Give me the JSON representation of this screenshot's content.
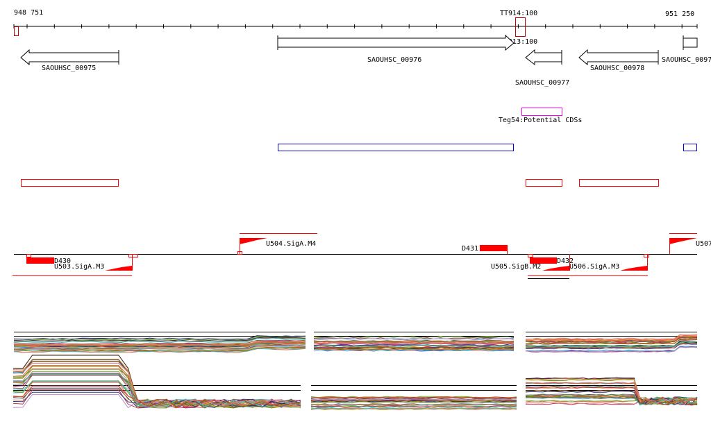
{
  "ruler": {
    "start_label": "948 751",
    "end_label": "951 250"
  },
  "terminators": [
    {
      "label": "TT914:100"
    },
    {
      "label": "TT913:100"
    }
  ],
  "genes": [
    {
      "label": "SAOUHSC_00975",
      "strand": "-"
    },
    {
      "label": "SAOUHSC_00976",
      "strand": "+"
    },
    {
      "label": "SAOUHSC_00977",
      "strand": "-"
    },
    {
      "label": "SAOUHSC_00978",
      "strand": "-"
    },
    {
      "label": "SAOUHSC_0097",
      "strand": "+"
    }
  ],
  "teg": {
    "label": "Teg54:Potential CDSs"
  },
  "features": {
    "D430": "D430",
    "D431": "D431",
    "D432": "D432",
    "U503": "U503.SigA.M3",
    "U504": "U504.SigA.M4",
    "U505": "U505.SigB.M2",
    "U506": "U506.SigA.M3",
    "U507": "U507"
  },
  "colors": {
    "terminator": "#c00000",
    "teg": "#ff00ff",
    "blue_track": "#0000cc",
    "red_track": "#ff0000",
    "feature": "#ff0000"
  }
}
